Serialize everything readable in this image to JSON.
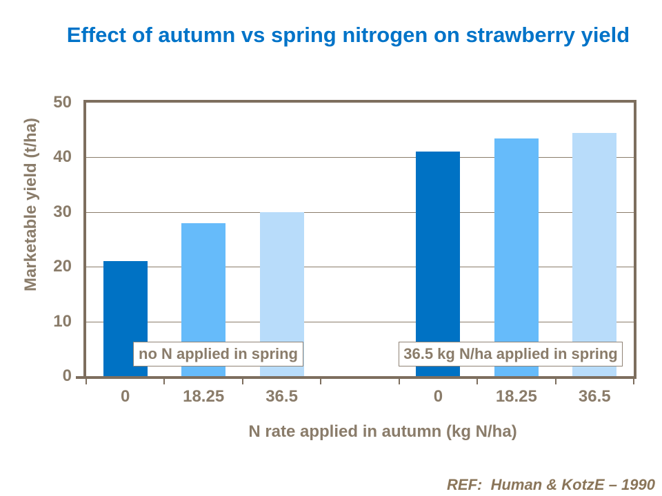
{
  "slide": {
    "title": "Effect of autumn vs spring nitrogen on strawberry yield",
    "ref": "REF:  Human & KotzE – 1990"
  },
  "colors": {
    "title_blue": "#0073C8",
    "axis_frame_brown": "#7D6E5E",
    "label_brown": "#8A7C6A",
    "ref_brown": "#8A7559",
    "annotation_border": "#8F8274",
    "bar_dark_blue": "#0072C4",
    "bar_sky_blue": "#66BBFA",
    "bar_pale_blue": "#B8DCFA"
  },
  "chart_data": {
    "type": "bar",
    "title": "Effect of autumn vs spring nitrogen on strawberry yield",
    "xlabel": "N rate applied in autumn (kg N/ha)",
    "ylabel": "Marketable yield (t/ha)",
    "ylim": [
      0,
      50
    ],
    "yticks": [
      0,
      10,
      20,
      30,
      40,
      50
    ],
    "grid": "horizontal gridlines every 10 units",
    "legend": "none",
    "bar_colors": [
      "#0072C4",
      "#66BBFA",
      "#B8DCFA"
    ],
    "groups": [
      {
        "annotation": "no N applied in spring",
        "categories": [
          "0",
          "18.25",
          "36.5"
        ],
        "values": [
          21,
          28,
          30
        ]
      },
      {
        "annotation": "36.5 kg N/ha applied in spring",
        "categories": [
          "0",
          "18.25",
          "36.5"
        ],
        "values": [
          41,
          43.5,
          44.5
        ]
      }
    ]
  }
}
